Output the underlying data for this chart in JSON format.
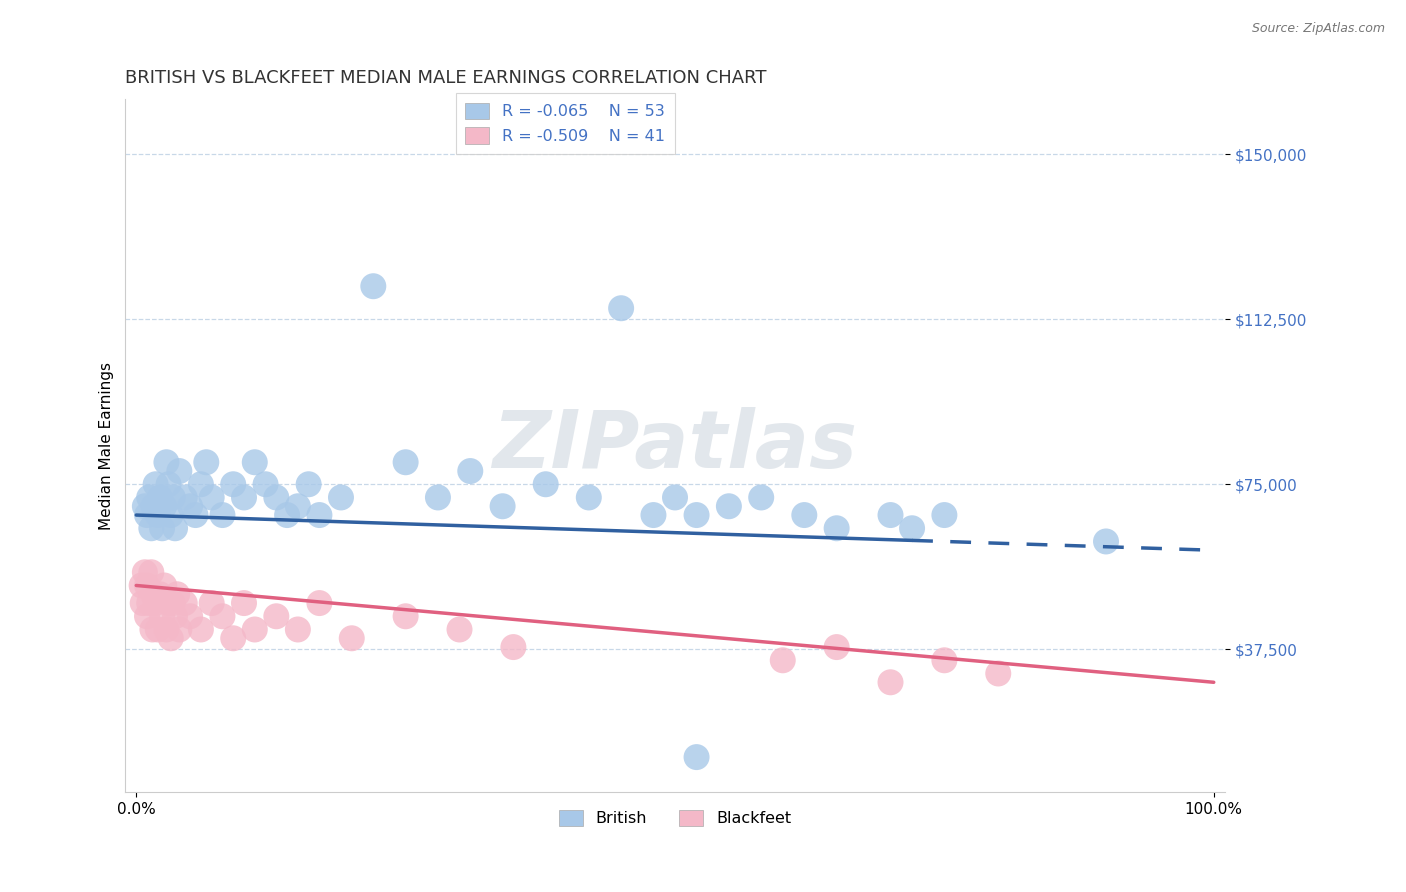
{
  "title": "BRITISH VS BLACKFEET MEDIAN MALE EARNINGS CORRELATION CHART",
  "source": "Source: ZipAtlas.com",
  "ylabel": "Median Male Earnings",
  "xlim": [
    -0.01,
    1.01
  ],
  "ylim": [
    5000,
    162500
  ],
  "yticks": [
    37500,
    75000,
    112500,
    150000
  ],
  "ytick_labels": [
    "$37,500",
    "$75,000",
    "$112,500",
    "$150,000"
  ],
  "xticks": [
    0.0,
    1.0
  ],
  "xtick_labels": [
    "0.0%",
    "100.0%"
  ],
  "british_R": -0.065,
  "british_N": 53,
  "blackfeet_R": -0.509,
  "blackfeet_N": 41,
  "british_color": "#a8c8e8",
  "blackfeet_color": "#f4b8c8",
  "british_line_color": "#3060a0",
  "blackfeet_line_color": "#e06080",
  "british_line_solid_end": 0.72,
  "legend_label_british": "British",
  "legend_label_blackfeet": "Blackfeet",
  "watermark": "ZIPatlas",
  "background_color": "#ffffff",
  "grid_color": "#c8d8e8",
  "title_fontsize": 13,
  "label_fontsize": 11,
  "tick_fontsize": 11,
  "british_intercept": 68000,
  "british_slope": -8000,
  "blackfeet_intercept": 52000,
  "blackfeet_slope": -22000,
  "british_points": [
    [
      0.008,
      70000
    ],
    [
      0.01,
      68000
    ],
    [
      0.012,
      72000
    ],
    [
      0.014,
      65000
    ],
    [
      0.016,
      70000
    ],
    [
      0.018,
      75000
    ],
    [
      0.02,
      68000
    ],
    [
      0.022,
      72000
    ],
    [
      0.024,
      65000
    ],
    [
      0.026,
      70000
    ],
    [
      0.028,
      80000
    ],
    [
      0.03,
      75000
    ],
    [
      0.032,
      68000
    ],
    [
      0.034,
      72000
    ],
    [
      0.036,
      65000
    ],
    [
      0.04,
      78000
    ],
    [
      0.045,
      72000
    ],
    [
      0.05,
      70000
    ],
    [
      0.055,
      68000
    ],
    [
      0.06,
      75000
    ],
    [
      0.065,
      80000
    ],
    [
      0.07,
      72000
    ],
    [
      0.08,
      68000
    ],
    [
      0.09,
      75000
    ],
    [
      0.1,
      72000
    ],
    [
      0.11,
      80000
    ],
    [
      0.12,
      75000
    ],
    [
      0.13,
      72000
    ],
    [
      0.14,
      68000
    ],
    [
      0.15,
      70000
    ],
    [
      0.16,
      75000
    ],
    [
      0.17,
      68000
    ],
    [
      0.19,
      72000
    ],
    [
      0.22,
      120000
    ],
    [
      0.25,
      80000
    ],
    [
      0.28,
      72000
    ],
    [
      0.31,
      78000
    ],
    [
      0.34,
      70000
    ],
    [
      0.38,
      75000
    ],
    [
      0.42,
      72000
    ],
    [
      0.45,
      115000
    ],
    [
      0.48,
      68000
    ],
    [
      0.5,
      72000
    ],
    [
      0.52,
      68000
    ],
    [
      0.55,
      70000
    ],
    [
      0.58,
      72000
    ],
    [
      0.62,
      68000
    ],
    [
      0.65,
      65000
    ],
    [
      0.7,
      68000
    ],
    [
      0.72,
      65000
    ],
    [
      0.75,
      68000
    ],
    [
      0.52,
      13000
    ],
    [
      0.9,
      62000
    ]
  ],
  "blackfeet_points": [
    [
      0.005,
      52000
    ],
    [
      0.006,
      48000
    ],
    [
      0.008,
      55000
    ],
    [
      0.01,
      45000
    ],
    [
      0.01,
      52000
    ],
    [
      0.012,
      48000
    ],
    [
      0.014,
      55000
    ],
    [
      0.015,
      42000
    ],
    [
      0.016,
      50000
    ],
    [
      0.018,
      48000
    ],
    [
      0.02,
      42000
    ],
    [
      0.022,
      50000
    ],
    [
      0.024,
      45000
    ],
    [
      0.026,
      52000
    ],
    [
      0.028,
      42000
    ],
    [
      0.03,
      48000
    ],
    [
      0.032,
      40000
    ],
    [
      0.034,
      48000
    ],
    [
      0.036,
      45000
    ],
    [
      0.038,
      50000
    ],
    [
      0.04,
      42000
    ],
    [
      0.045,
      48000
    ],
    [
      0.05,
      45000
    ],
    [
      0.06,
      42000
    ],
    [
      0.07,
      48000
    ],
    [
      0.08,
      45000
    ],
    [
      0.09,
      40000
    ],
    [
      0.1,
      48000
    ],
    [
      0.11,
      42000
    ],
    [
      0.13,
      45000
    ],
    [
      0.15,
      42000
    ],
    [
      0.17,
      48000
    ],
    [
      0.2,
      40000
    ],
    [
      0.25,
      45000
    ],
    [
      0.3,
      42000
    ],
    [
      0.35,
      38000
    ],
    [
      0.6,
      35000
    ],
    [
      0.65,
      38000
    ],
    [
      0.7,
      30000
    ],
    [
      0.75,
      35000
    ],
    [
      0.8,
      32000
    ]
  ]
}
